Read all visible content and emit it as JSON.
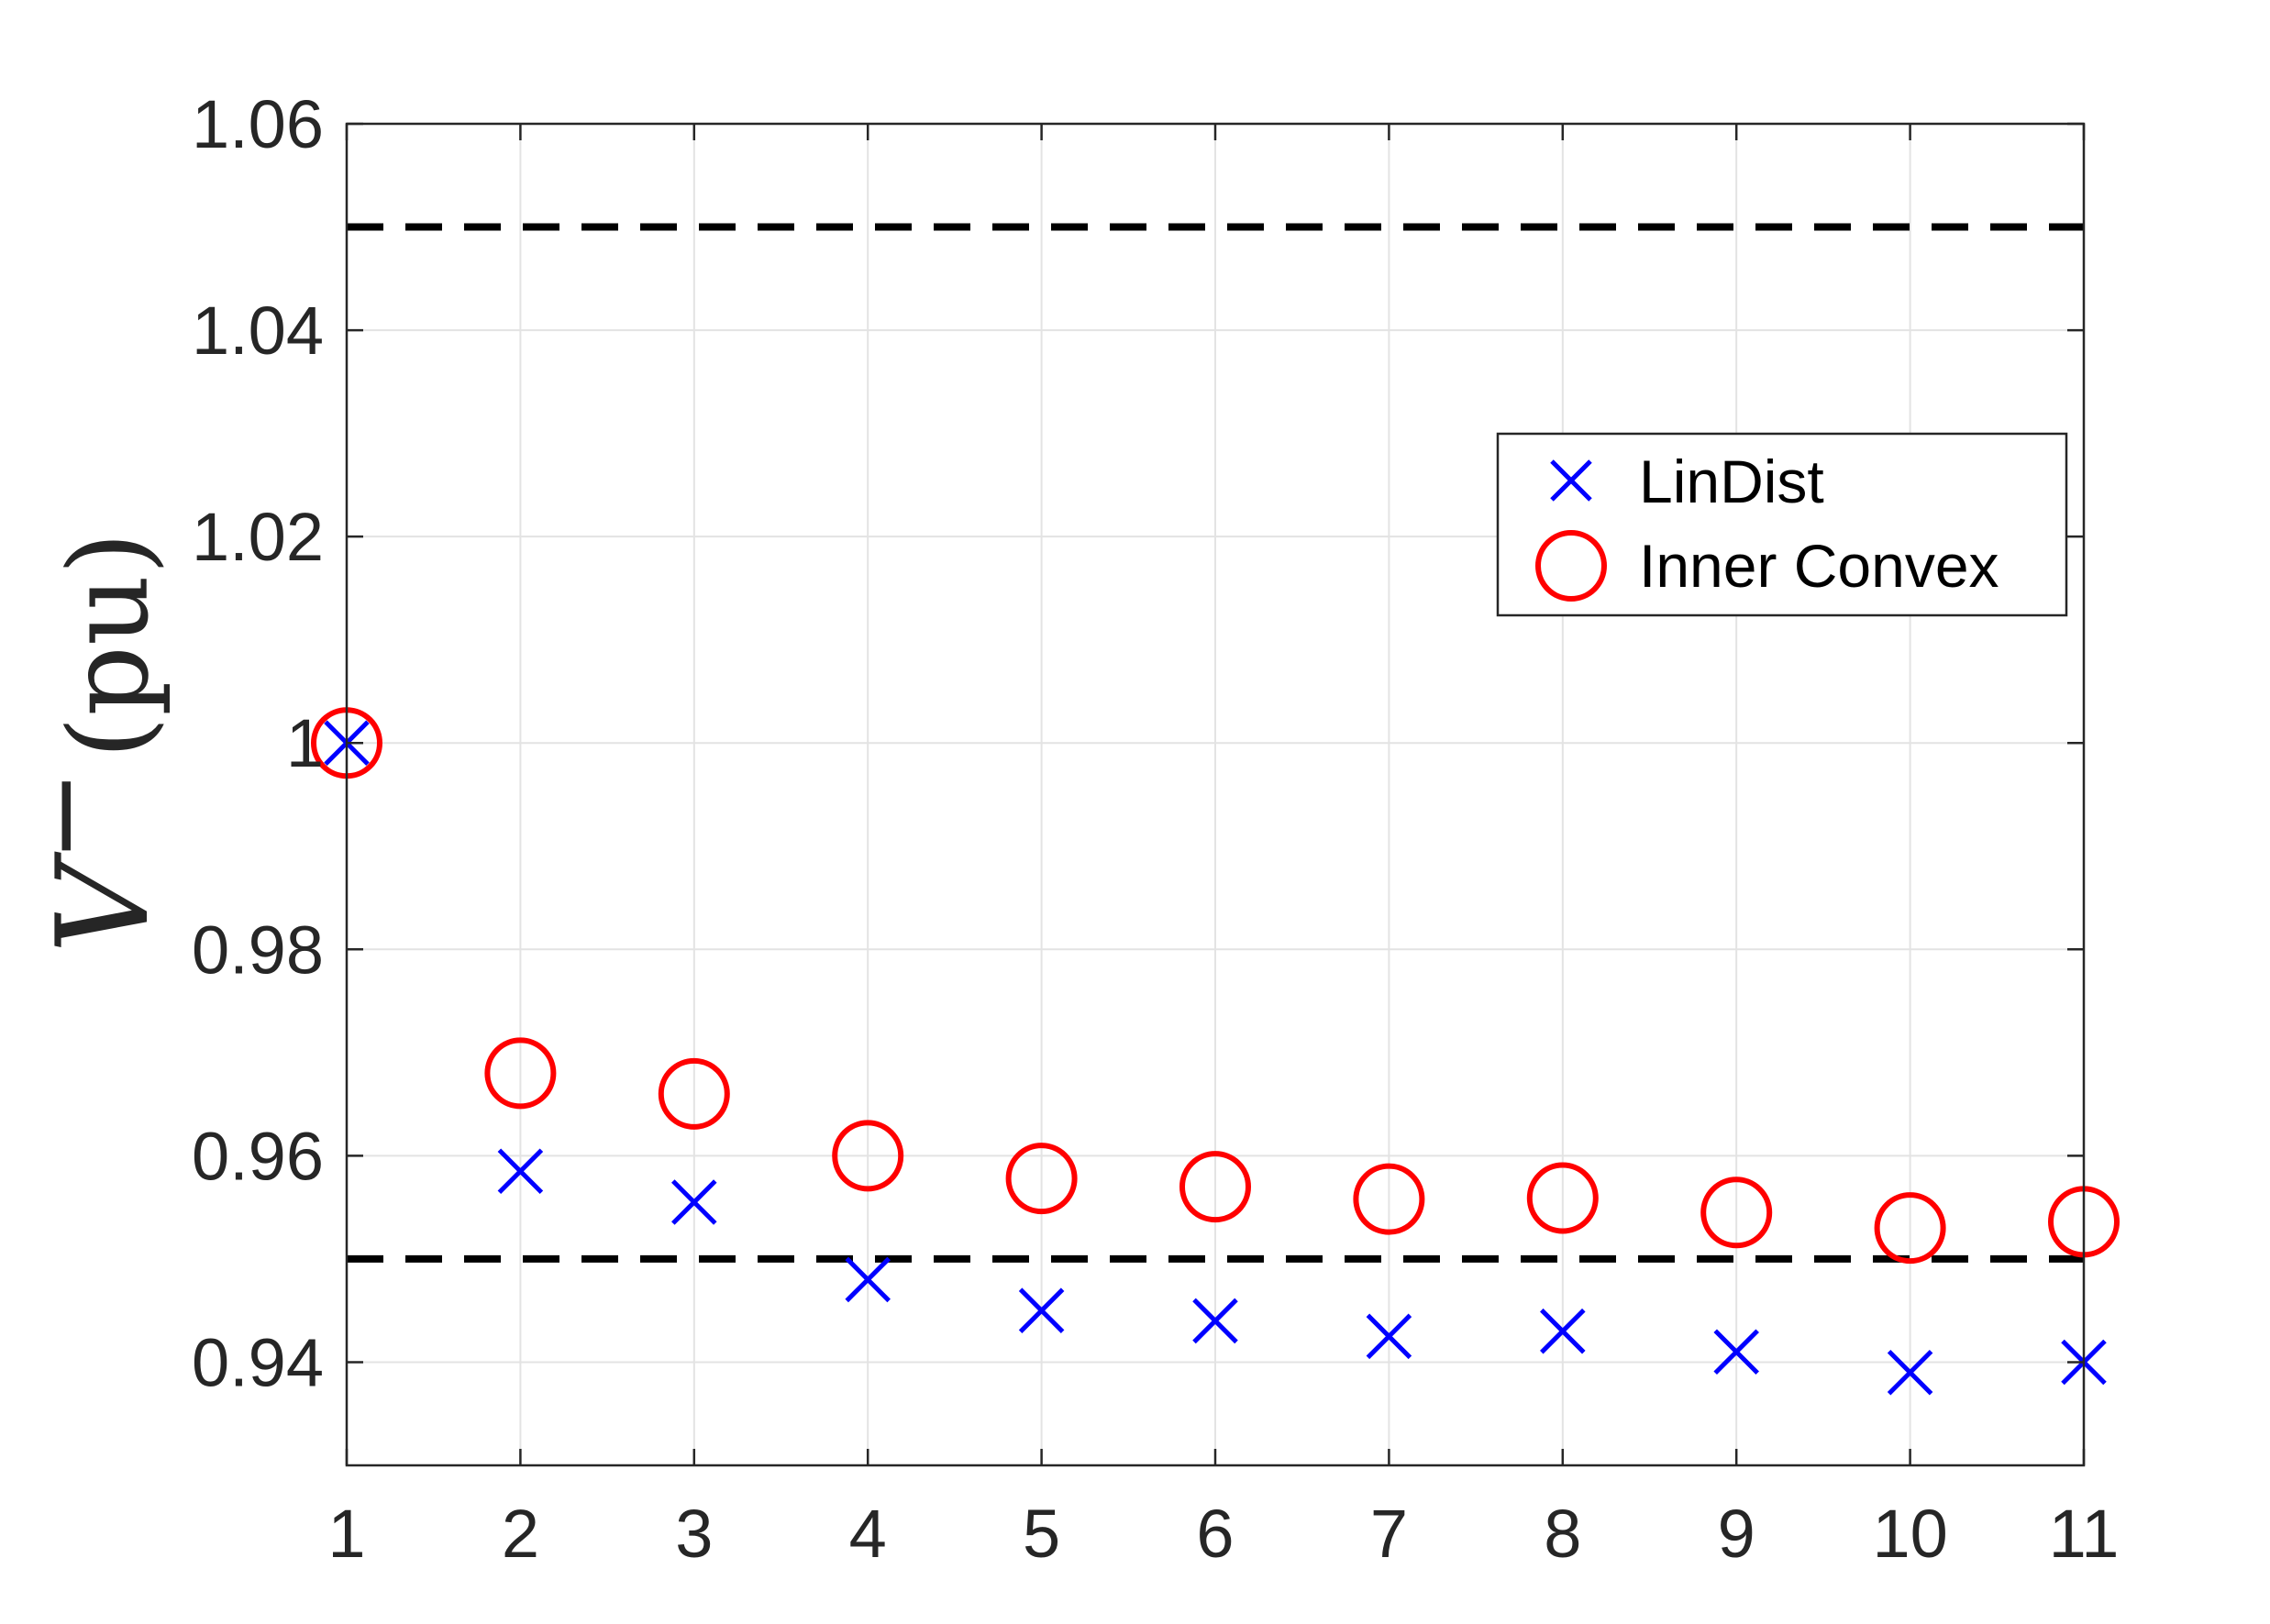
{
  "chart_data": {
    "type": "scatter",
    "xlabel": "",
    "ylabel": {
      "symbol": "V",
      "superscript": "−",
      "unit": "(pu)"
    },
    "xlim": [
      1,
      11
    ],
    "ylim": [
      0.93,
      1.06
    ],
    "xticks": [
      "1",
      "2",
      "3",
      "4",
      "5",
      "6",
      "7",
      "8",
      "9",
      "10",
      "11"
    ],
    "yticks": [
      "0.94",
      "0.96",
      "0.98",
      "1",
      "1.02",
      "1.04",
      "1.06"
    ],
    "grid": true,
    "legend_position": "upper right",
    "reference_lines": [
      1.05,
      0.95
    ],
    "series": [
      {
        "name": "LinDist",
        "marker": "x",
        "color": "#0000ff",
        "x": [
          1,
          2,
          3,
          4,
          5,
          6,
          7,
          8,
          9,
          10,
          11
        ],
        "y": [
          1.0,
          0.9585,
          0.9555,
          0.948,
          0.945,
          0.944,
          0.9425,
          0.943,
          0.941,
          0.939,
          0.94
        ]
      },
      {
        "name": "Inner Convex",
        "marker": "o",
        "color": "#ff0000",
        "x": [
          1,
          2,
          3,
          4,
          5,
          6,
          7,
          8,
          9,
          10,
          11
        ],
        "y": [
          1.0,
          0.968,
          0.966,
          0.96,
          0.9578,
          0.957,
          0.9558,
          0.9559,
          0.9545,
          0.953,
          0.9536
        ]
      }
    ]
  }
}
